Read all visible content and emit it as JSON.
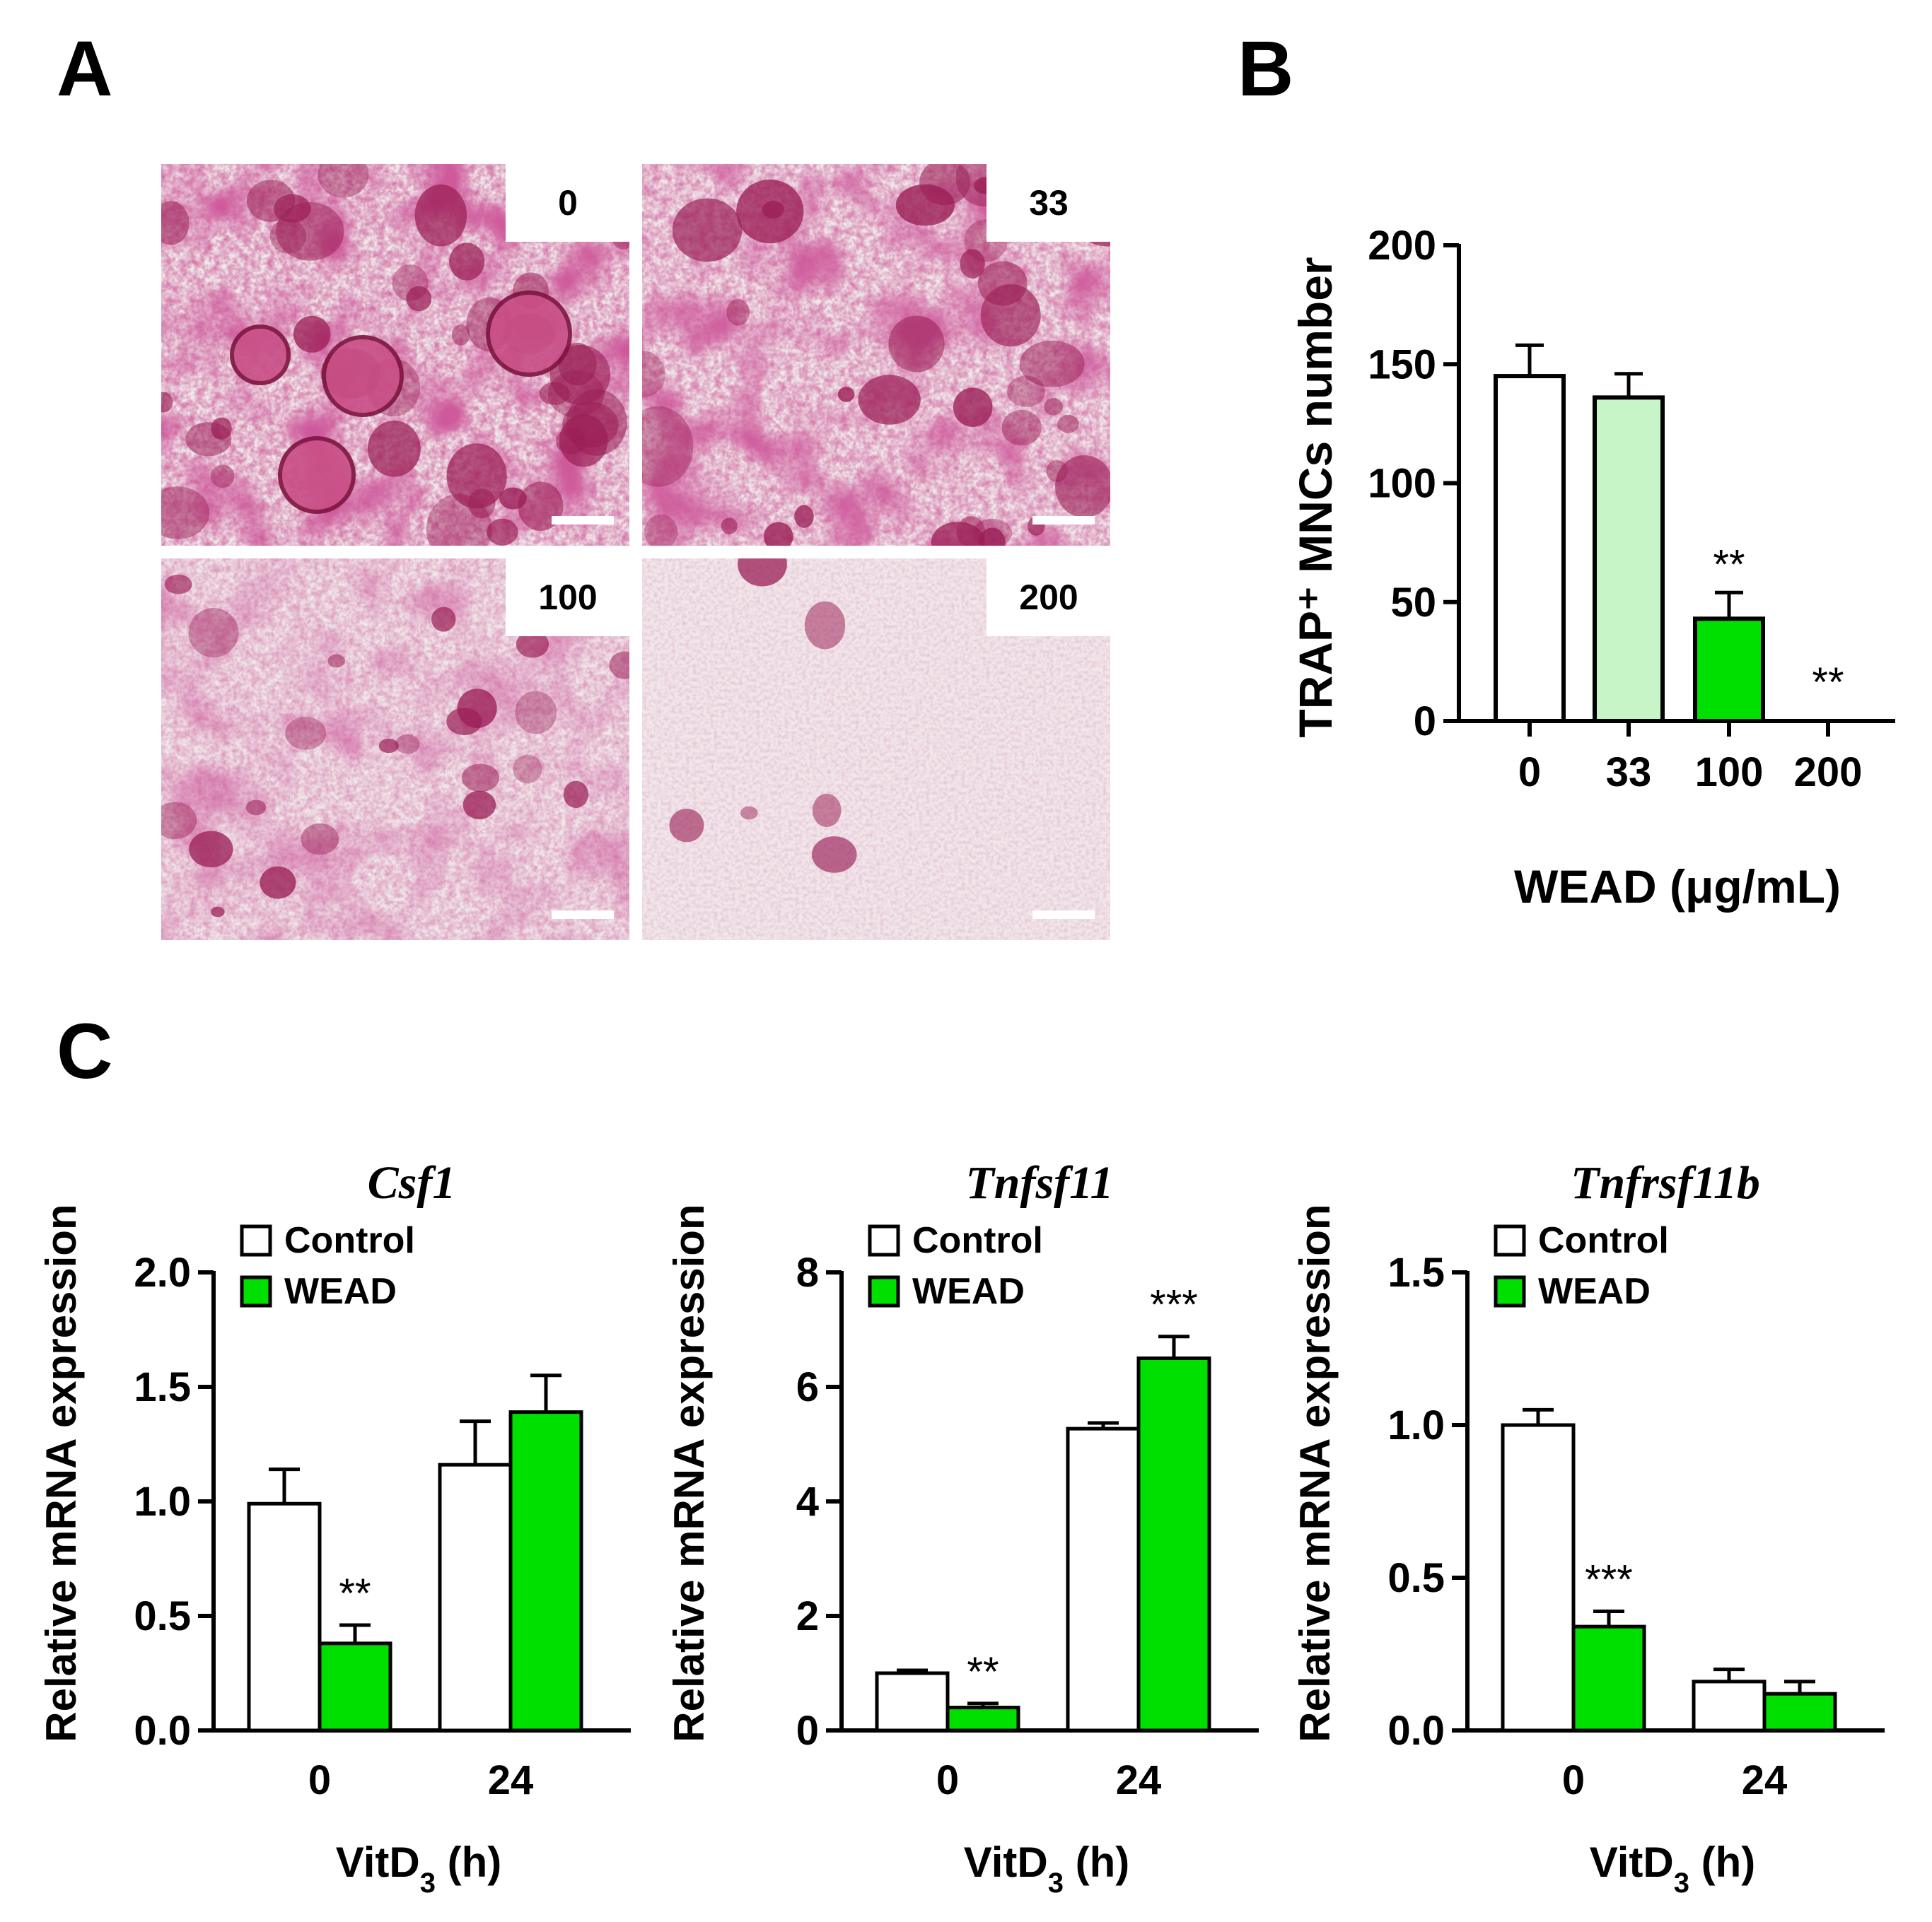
{
  "panels": {
    "A": "A",
    "B": "B",
    "C": "C"
  },
  "micrographs": [
    {
      "label": "0",
      "density": 1.0
    },
    {
      "label": "33",
      "density": 0.9
    },
    {
      "label": "100",
      "density": 0.55
    },
    {
      "label": "200",
      "density": 0.15
    }
  ],
  "colors": {
    "stain": "#a3205a",
    "control": "#ffffff",
    "wead": "#00e000",
    "wead_light": "#c8f5c8"
  },
  "chart_data": [
    {
      "id": "B",
      "type": "bar",
      "title": "",
      "xlabel": "WEAD (μg/mL)",
      "ylabel": "TRAP⁺ MNCs number",
      "ylim": [
        0,
        200
      ],
      "yticks": [
        "0",
        "50",
        "100",
        "150",
        "200"
      ],
      "categories": [
        "0",
        "33",
        "100",
        "200"
      ],
      "values": [
        145,
        136,
        43,
        0
      ],
      "errors": [
        13,
        10,
        11,
        0
      ],
      "bar_colors": [
        "#ffffff",
        "#c8f5c8",
        "#00e000",
        "#00e000"
      ],
      "significance": [
        "",
        "",
        "**",
        "**"
      ]
    },
    {
      "id": "C1",
      "type": "bar",
      "title": "Csf1",
      "xlabel": "VitD3 (h)",
      "ylabel": "Relative mRNA expression",
      "ylim": [
        0,
        2.0
      ],
      "yticks": [
        "0.0",
        "0.5",
        "1.0",
        "1.5",
        "2.0"
      ],
      "categories": [
        "0",
        "24"
      ],
      "series": [
        {
          "name": "Control",
          "values": [
            0.99,
            1.16
          ],
          "errors": [
            0.15,
            0.19
          ],
          "significance": [
            "",
            ""
          ]
        },
        {
          "name": "WEAD",
          "values": [
            0.38,
            1.39
          ],
          "errors": [
            0.08,
            0.16
          ],
          "significance": [
            "**",
            ""
          ]
        }
      ],
      "legend": "top-left"
    },
    {
      "id": "C2",
      "type": "bar",
      "title": "Tnfsf11",
      "xlabel": "VitD3 (h)",
      "ylabel": "Relative mRNA expression",
      "ylim": [
        0,
        8
      ],
      "yticks": [
        "0",
        "2",
        "4",
        "6",
        "8"
      ],
      "categories": [
        "0",
        "24"
      ],
      "series": [
        {
          "name": "Control",
          "values": [
            1.0,
            5.27
          ],
          "errors": [
            0.05,
            0.1
          ],
          "significance": [
            "",
            ""
          ]
        },
        {
          "name": "WEAD",
          "values": [
            0.4,
            6.5
          ],
          "errors": [
            0.07,
            0.38
          ],
          "significance": [
            "**",
            "***"
          ]
        }
      ],
      "legend": "top-left"
    },
    {
      "id": "C3",
      "type": "bar",
      "title": "Tnfrsf11b",
      "xlabel": "VitD3 (h)",
      "ylabel": "Relative mRNA expression",
      "ylim": [
        0,
        1.5
      ],
      "yticks": [
        "0.0",
        "0.5",
        "1.0",
        "1.5"
      ],
      "categories": [
        "0",
        "24"
      ],
      "series": [
        {
          "name": "Control",
          "values": [
            1.0,
            0.16
          ],
          "errors": [
            0.05,
            0.04
          ],
          "significance": [
            "",
            ""
          ]
        },
        {
          "name": "WEAD",
          "values": [
            0.34,
            0.12
          ],
          "errors": [
            0.05,
            0.04
          ],
          "significance": [
            "***",
            ""
          ]
        }
      ],
      "legend": "top-left"
    }
  ]
}
